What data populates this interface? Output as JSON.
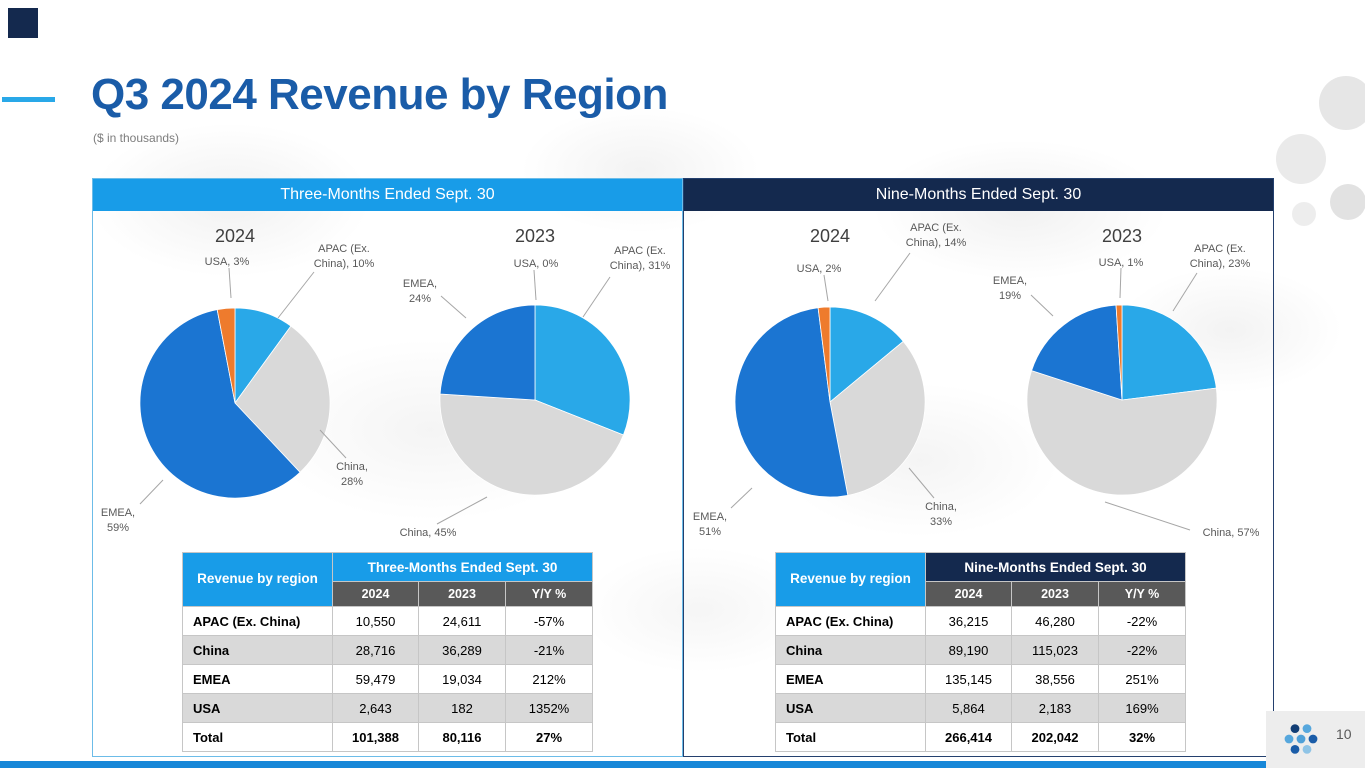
{
  "slide": {
    "title": "Q3 2024 Revenue by Region",
    "subtitle": "($ in thousands)",
    "page_number": "10"
  },
  "colors": {
    "accent_light_blue": "#189CE8",
    "accent_navy": "#14294E",
    "title_blue": "#1A5CA8",
    "pie_apac": "#29A8E8",
    "pie_china": "#D9D9D9",
    "pie_emea": "#1B75D2",
    "pie_usa": "#EE7B2D"
  },
  "panels": [
    {
      "header": "Three-Months Ended Sept. 30",
      "table": {
        "corner_header": "Revenue by region",
        "period_header": "Three-Months Ended Sept. 30",
        "col_headers": [
          "2024",
          "2023",
          "Y/Y %"
        ],
        "rows": [
          {
            "label": "APAC (Ex. China)",
            "values": [
              "10,550",
              "24,611",
              "-57%"
            ]
          },
          {
            "label": "China",
            "values": [
              "28,716",
              "36,289",
              "-21%"
            ]
          },
          {
            "label": "EMEA",
            "values": [
              "59,479",
              "19,034",
              "212%"
            ]
          },
          {
            "label": "USA",
            "values": [
              "2,643",
              "182",
              "1352%"
            ]
          }
        ],
        "total": {
          "label": "Total",
          "values": [
            "101,388",
            "80,116",
            "27%"
          ]
        }
      }
    },
    {
      "header": "Nine-Months Ended Sept. 30",
      "table": {
        "corner_header": "Revenue by region",
        "period_header": "Nine-Months Ended Sept. 30",
        "col_headers": [
          "2024",
          "2023",
          "Y/Y %"
        ],
        "rows": [
          {
            "label": "APAC (Ex. China)",
            "values": [
              "36,215",
              "46,280",
              "-22%"
            ]
          },
          {
            "label": "China",
            "values": [
              "89,190",
              "115,023",
              "-22%"
            ]
          },
          {
            "label": "EMEA",
            "values": [
              "135,145",
              "38,556",
              "251%"
            ]
          },
          {
            "label": "USA",
            "values": [
              "5,864",
              "2,183",
              "169%"
            ]
          }
        ],
        "total": {
          "label": "Total",
          "values": [
            "266,414",
            "202,042",
            "32%"
          ]
        }
      }
    }
  ],
  "chart_data": [
    {
      "type": "pie",
      "title": "2024",
      "panel": "Three-Months Ended Sept. 30",
      "categories": [
        "APAC (Ex. China)",
        "China",
        "EMEA",
        "USA"
      ],
      "values": [
        10,
        28,
        59,
        3
      ],
      "labels": [
        "APAC (Ex. China), 10%",
        "China, 28%",
        "EMEA, 59%",
        "USA, 3%"
      ],
      "colors": [
        "#29A8E8",
        "#D9D9D9",
        "#1B75D2",
        "#EE7B2D"
      ]
    },
    {
      "type": "pie",
      "title": "2023",
      "panel": "Three-Months Ended Sept. 30",
      "categories": [
        "APAC (Ex. China)",
        "China",
        "EMEA",
        "USA"
      ],
      "values": [
        31,
        45,
        24,
        0
      ],
      "labels": [
        "APAC (Ex. China), 31%",
        "China, 45%",
        "EMEA, 24%",
        "USA, 0%"
      ],
      "colors": [
        "#29A8E8",
        "#D9D9D9",
        "#1B75D2",
        "#EE7B2D"
      ]
    },
    {
      "type": "pie",
      "title": "2024",
      "panel": "Nine-Months Ended Sept. 30",
      "categories": [
        "APAC (Ex. China)",
        "China",
        "EMEA",
        "USA"
      ],
      "values": [
        14,
        33,
        51,
        2
      ],
      "labels": [
        "APAC (Ex. China), 14%",
        "China, 33%",
        "EMEA, 51%",
        "USA, 2%"
      ],
      "colors": [
        "#29A8E8",
        "#D9D9D9",
        "#1B75D2",
        "#EE7B2D"
      ]
    },
    {
      "type": "pie",
      "title": "2023",
      "panel": "Nine-Months Ended Sept. 30",
      "categories": [
        "APAC (Ex. China)",
        "China",
        "EMEA",
        "USA"
      ],
      "values": [
        23,
        57,
        19,
        1
      ],
      "labels": [
        "APAC (Ex. China), 23%",
        "China, 57%",
        "EMEA, 19%",
        "USA, 1%"
      ],
      "colors": [
        "#29A8E8",
        "#D9D9D9",
        "#1B75D2",
        "#EE7B2D"
      ]
    }
  ]
}
